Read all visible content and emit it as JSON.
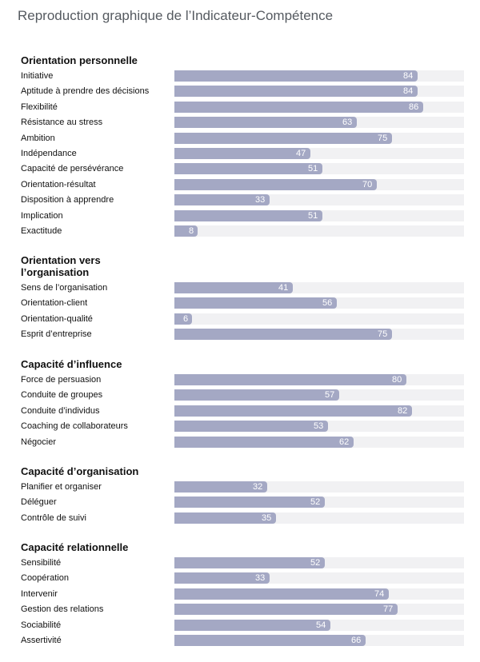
{
  "title": "Reproduction graphique de l’Indicateur-Compétence",
  "chart_data": {
    "type": "bar",
    "orientation": "horizontal",
    "xlim": [
      0,
      100
    ],
    "grid": false,
    "sections": [
      {
        "title": "Orientation personnelle",
        "items": [
          {
            "label": "Initiative",
            "value": 84
          },
          {
            "label": "Aptitude à prendre des décisions",
            "value": 84
          },
          {
            "label": "Flexibilité",
            "value": 86
          },
          {
            "label": "Résistance au stress",
            "value": 63
          },
          {
            "label": "Ambition",
            "value": 75
          },
          {
            "label": "Indépendance",
            "value": 47
          },
          {
            "label": "Capacité de persévérance",
            "value": 51
          },
          {
            "label": "Orientation-résultat",
            "value": 70
          },
          {
            "label": "Disposition à apprendre",
            "value": 33
          },
          {
            "label": "Implication",
            "value": 51
          },
          {
            "label": "Exactitude",
            "value": 8
          }
        ]
      },
      {
        "title": "Orientation vers l’organisation",
        "items": [
          {
            "label": "Sens de l’organisation",
            "value": 41
          },
          {
            "label": "Orientation-client",
            "value": 56
          },
          {
            "label": "Orientation-qualité",
            "value": 6
          },
          {
            "label": "Esprit d’entreprise",
            "value": 75
          }
        ]
      },
      {
        "title": "Capacité d’influence",
        "items": [
          {
            "label": "Force de persuasion",
            "value": 80
          },
          {
            "label": "Conduite de groupes",
            "value": 57
          },
          {
            "label": "Conduite d’individus",
            "value": 82
          },
          {
            "label": "Coaching de collaborateurs",
            "value": 53
          },
          {
            "label": "Négocier",
            "value": 62
          }
        ]
      },
      {
        "title": "Capacité d’organisation",
        "items": [
          {
            "label": "Planifier et organiser",
            "value": 32
          },
          {
            "label": "Déléguer",
            "value": 52
          },
          {
            "label": "Contrôle de suivi",
            "value": 35
          }
        ]
      },
      {
        "title": "Capacité relationnelle",
        "items": [
          {
            "label": "Sensibilité",
            "value": 52
          },
          {
            "label": "Coopération",
            "value": 33
          },
          {
            "label": "Intervenir",
            "value": 74
          },
          {
            "label": "Gestion des relations",
            "value": 77
          },
          {
            "label": "Sociabilité",
            "value": 54
          },
          {
            "label": "Assertivité",
            "value": 66
          }
        ]
      }
    ],
    "colors": {
      "bar": "#a4a8c4",
      "track": "#f1f1f3",
      "value_text": "#ffffff"
    }
  }
}
